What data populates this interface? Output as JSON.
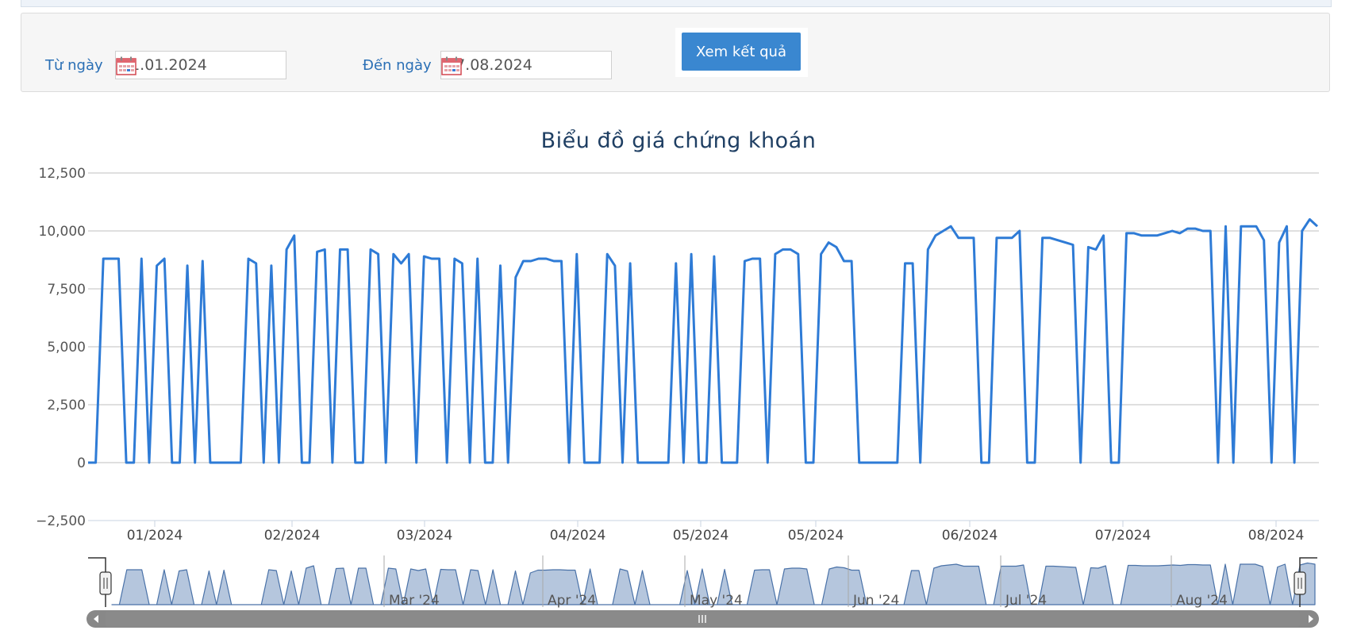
{
  "filter": {
    "from_label": "Từ ngày",
    "from_value": "01.01.2024",
    "to_label": "Đến ngày",
    "to_value": "27.08.2024",
    "submit_label": "Xem kết quả",
    "calendar_icon": "calendar-icon"
  },
  "colors": {
    "line": "#2e7bd6",
    "navigator_fill": "#b5c6dd",
    "navigator_line": "#4a72a8",
    "button": "#3a87d0",
    "label": "#2a6fb5",
    "scrollbar": "#888888"
  },
  "chart_data": {
    "type": "line",
    "title": "Biểu đồ giá chứng khoán",
    "ylim": [
      -2500,
      12500
    ],
    "yticks": [
      "12,500",
      "10,000",
      "7,500",
      "5,000",
      "2,500",
      "0",
      "−2,500"
    ],
    "ytick_values": [
      12500,
      10000,
      7500,
      5000,
      2500,
      0,
      -2500
    ],
    "xticks": [
      "01/2024",
      "02/2024",
      "03/2024",
      "04/2024",
      "05/2024",
      "05/2024",
      "06/2024",
      "07/2024",
      "08/2024"
    ],
    "grid": true,
    "series": [
      {
        "values": [
          0,
          0,
          8800,
          8800,
          8800,
          0,
          0,
          8800,
          0,
          8500,
          8800,
          0,
          0,
          8500,
          0,
          8700,
          0,
          0,
          0,
          0,
          0,
          8800,
          8600,
          0,
          8500,
          0,
          9200,
          9800,
          0,
          0,
          9100,
          9200,
          0,
          9200,
          9200,
          0,
          0,
          9200,
          9000,
          0,
          9000,
          8600,
          9000,
          0,
          8900,
          8800,
          8800,
          0,
          8800,
          8600,
          0,
          8800,
          0,
          0,
          8500,
          0,
          8000,
          8700,
          8700,
          8800,
          8800,
          8700,
          8700,
          0,
          9000,
          0,
          0,
          0,
          9000,
          8500,
          0,
          8600,
          0,
          0,
          0,
          0,
          0,
          8600,
          0,
          9000,
          0,
          0,
          8900,
          0,
          0,
          0,
          8700,
          8800,
          8800,
          0,
          9000,
          9200,
          9200,
          9000,
          0,
          0,
          9000,
          9500,
          9300,
          8700,
          8700,
          0,
          0,
          0,
          0,
          0,
          0,
          8600,
          8600,
          0,
          9200,
          9800,
          10000,
          10200,
          9700,
          9700,
          9700,
          0,
          0,
          9700,
          9700,
          9700,
          10000,
          0,
          0,
          9700,
          9700,
          9600,
          9500,
          9400,
          0,
          9300,
          9200,
          9800,
          0,
          0,
          9900,
          9900,
          9800,
          9800,
          9800,
          9900,
          10000,
          9900,
          10100,
          10100,
          10000,
          10000,
          0,
          10200,
          0,
          10200,
          10200,
          10200,
          9600,
          0,
          9500,
          10200,
          0,
          10000,
          10500,
          10200
        ]
      }
    ],
    "navigator": {
      "labels": [
        "Mar '24",
        "Apr '24",
        "May '24",
        "Jun '24",
        "Jul '24",
        "Aug '24"
      ]
    }
  }
}
